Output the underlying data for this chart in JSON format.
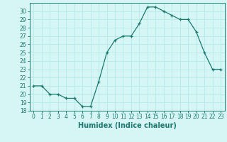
{
  "x": [
    0,
    1,
    2,
    3,
    4,
    5,
    6,
    7,
    8,
    9,
    10,
    11,
    12,
    13,
    14,
    15,
    16,
    17,
    18,
    19,
    20,
    21,
    22,
    23
  ],
  "y": [
    21,
    21,
    20,
    20,
    19.5,
    19.5,
    18.5,
    18.5,
    21.5,
    25,
    26.5,
    27,
    27,
    28.5,
    30.5,
    30.5,
    30,
    29.5,
    29,
    29,
    27.5,
    25,
    23,
    23
  ],
  "line_color": "#1a7a6e",
  "marker": "+",
  "bg_color": "#d6f5f5",
  "grid_color": "#b8e8e8",
  "xlabel": "Humidex (Indice chaleur)",
  "xlim": [
    -0.5,
    23.5
  ],
  "ylim": [
    18,
    31
  ],
  "yticks": [
    18,
    19,
    20,
    21,
    22,
    23,
    24,
    25,
    26,
    27,
    28,
    29,
    30
  ],
  "xticks": [
    0,
    1,
    2,
    3,
    4,
    5,
    6,
    7,
    8,
    9,
    10,
    11,
    12,
    13,
    14,
    15,
    16,
    17,
    18,
    19,
    20,
    21,
    22,
    23
  ],
  "tick_color": "#1a7a6e",
  "axis_color": "#1a7a6e",
  "label_fontsize": 7,
  "tick_fontsize": 5.5
}
